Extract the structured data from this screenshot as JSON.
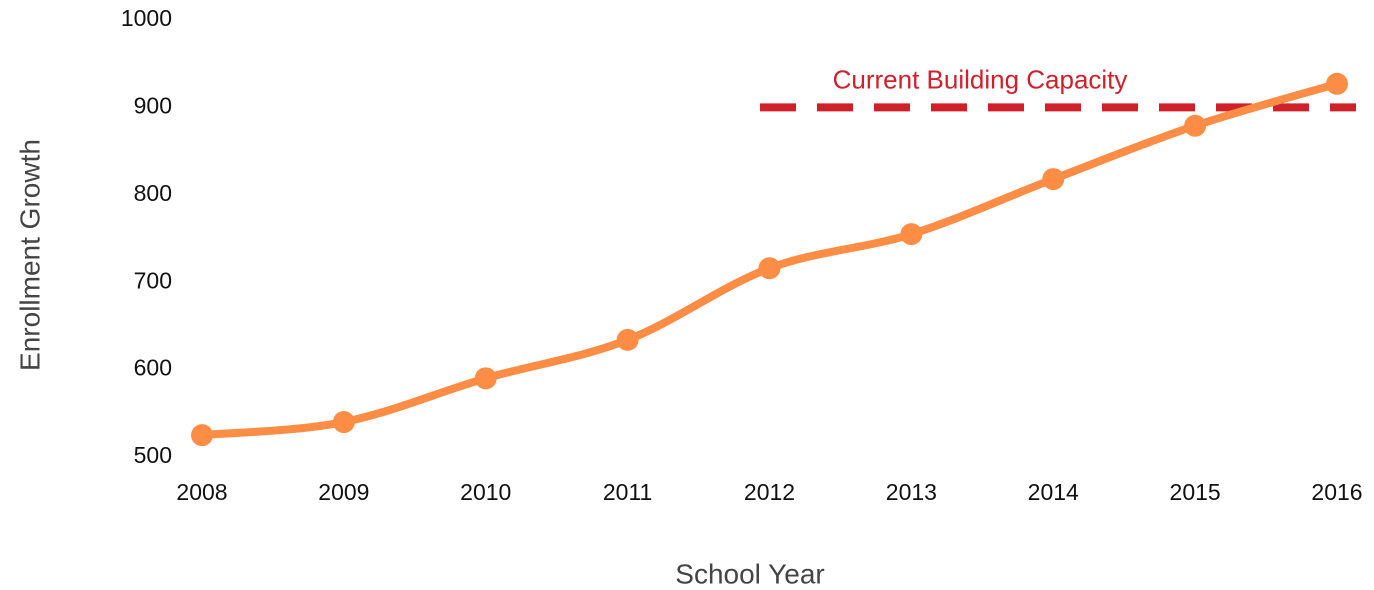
{
  "chart_data": {
    "type": "line",
    "x_label": "School Year",
    "y_label": "Enrollment Growth",
    "categories": [
      "2008",
      "2009",
      "2010",
      "2011",
      "2012",
      "2013",
      "2014",
      "2015",
      "2016"
    ],
    "series": [
      {
        "color": "#fd8c45",
        "values": [
          525,
          540,
          590,
          634,
          716,
          755,
          818,
          879,
          927
        ]
      }
    ],
    "ylim": [
      500,
      1000
    ],
    "yticks": [
      500,
      600,
      700,
      800,
      900,
      1000
    ],
    "reference_line": {
      "label": "Current Building Capacity",
      "value": 900,
      "color": "#d0202a"
    }
  }
}
